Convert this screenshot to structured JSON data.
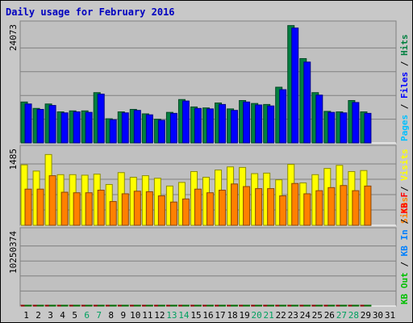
{
  "colors": {
    "hits": "#008040",
    "files": "#0000ff",
    "pages": "#00c0ff",
    "visits": "#ffff00",
    "sites": "#ff8000",
    "kb_f": "#ff0000",
    "kb_in": "#0080ff",
    "kb_out": "#00c000",
    "panel_bg": "#c0c0c0",
    "title": "#0000c0",
    "weekend": "#00a060"
  },
  "chart_data": {
    "type": "bar",
    "title": "Daily usage for February 2016",
    "categories": [
      "1",
      "2",
      "3",
      "4",
      "5",
      "6",
      "7",
      "8",
      "9",
      "10",
      "11",
      "12",
      "13",
      "14",
      "15",
      "16",
      "17",
      "18",
      "19",
      "20",
      "21",
      "22",
      "23",
      "24",
      "25",
      "26",
      "27",
      "28",
      "29",
      "30",
      "31"
    ],
    "weekend_days": [
      "6",
      "7",
      "13",
      "14",
      "20",
      "21",
      "27",
      "28"
    ],
    "panels": [
      {
        "name": "requests",
        "ymax_label": "24073",
        "ymax": 24073,
        "legend": [
          {
            "text": "Hits",
            "color": "hits"
          },
          {
            "text": "/",
            "color": "sep"
          },
          {
            "text": "Files",
            "color": "files"
          },
          {
            "text": "/",
            "color": "sep"
          },
          {
            "text": "Pages",
            "color": "pages"
          }
        ],
        "series": [
          {
            "name": "Hits",
            "color": "hits",
            "values": [
              8300,
              7000,
              7900,
              6300,
              6500,
              6500,
              10200,
              4900,
              6300,
              6800,
              5900,
              4800,
              6200,
              8800,
              7300,
              7100,
              8100,
              6900,
              8600,
              8000,
              7800,
              11300,
              23800,
              17100,
              10200,
              6400,
              6300,
              8600,
              6300,
              null,
              null
            ]
          },
          {
            "name": "Files",
            "color": "files",
            "values": [
              7900,
              6800,
              7600,
              6100,
              6300,
              6200,
              9900,
              4700,
              6100,
              6600,
              5700,
              4600,
              6000,
              8500,
              7000,
              6900,
              7800,
              6600,
              8300,
              7700,
              7500,
              10800,
              23300,
              16400,
              9700,
              6200,
              6100,
              8200,
              6000,
              null,
              null
            ]
          }
        ]
      },
      {
        "name": "visits",
        "ymax_label": "1485",
        "ymax": 1485,
        "legend": [
          {
            "text": "Visits",
            "color": "visits"
          },
          {
            "text": "/",
            "color": "sep"
          },
          {
            "text": "Sites",
            "color": "sites"
          }
        ],
        "series": [
          {
            "name": "Visits",
            "color": "visits",
            "values": [
              1170,
              1050,
              1370,
              980,
              980,
              970,
              990,
              790,
              1020,
              930,
              960,
              910,
              760,
              830,
              1040,
              930,
              1070,
              1130,
              1120,
              1000,
              1010,
              880,
              1180,
              820,
              980,
              1100,
              1160,
              1040,
              1060,
              null,
              null
            ]
          },
          {
            "name": "Sites",
            "color": "sites",
            "values": [
              700,
              700,
              960,
              640,
              630,
              630,
              680,
              460,
              610,
              660,
              650,
              570,
              450,
              510,
              700,
              630,
              680,
              800,
              750,
              710,
              710,
              570,
              810,
              610,
              670,
              730,
              770,
              670,
              760,
              null,
              null
            ]
          }
        ]
      },
      {
        "name": "kbytes",
        "ymax_label": "10250374",
        "ymax": 10250374,
        "legend": [
          {
            "text": "KB F",
            "color": "kb_f"
          },
          {
            "text": "/",
            "color": "sep"
          },
          {
            "text": "KB In",
            "color": "kb_in"
          },
          {
            "text": "/",
            "color": "sep"
          },
          {
            "text": "KB Out",
            "color": "kb_out"
          }
        ],
        "series": [
          {
            "name": "KB F",
            "color": "kb_f",
            "values": [
              3200,
              3700,
              3600,
              3500,
              3500,
              3350,
              3200,
              2350,
              3500,
              3500,
              3800,
              3600,
              3600,
              3400,
              3300,
              3800,
              2700,
              3800,
              3700,
              3700,
              3700,
              3600,
              4800,
              4600,
              3600,
              3300,
              2700,
              3400,
              3300,
              null,
              null
            ]
          },
          {
            "name": "KB Out",
            "color": "kb_out",
            "values": [
              3950,
              4300,
              2750,
              3350,
              3150,
              3200,
              3050,
              2000,
              3150,
              4000,
              2100,
              2000,
              3350,
              3150,
              3250,
              2700,
              5600,
              3500,
              3750,
              3600,
              3400,
              4900,
              9800,
              8800,
              5700,
              2850,
              3700,
              5400,
              3500,
              null,
              null
            ]
          }
        ]
      }
    ]
  }
}
